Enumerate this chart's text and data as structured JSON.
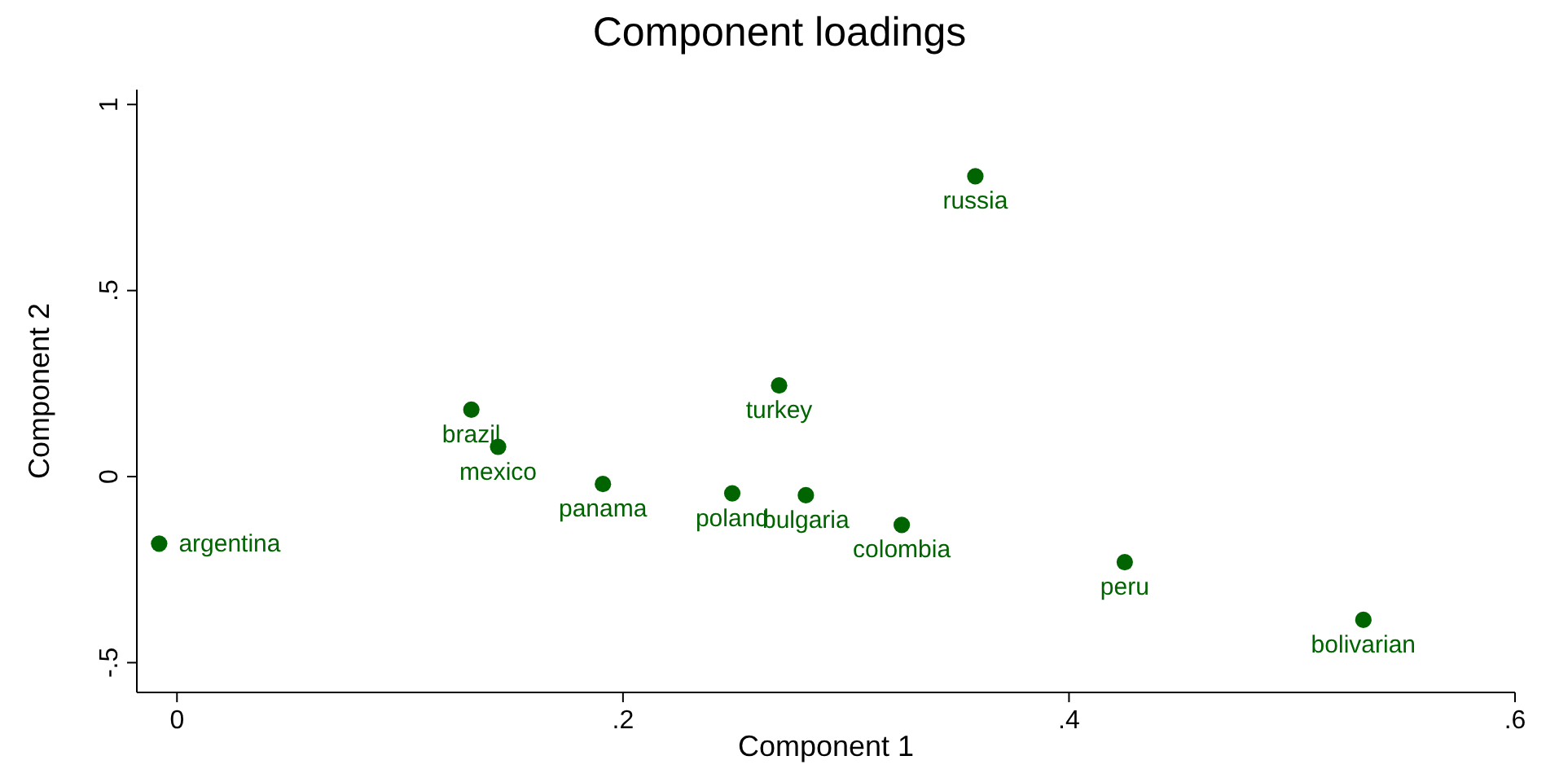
{
  "chart_data": {
    "type": "scatter",
    "title": "Component loadings",
    "xlabel": "Component 1",
    "ylabel": "Component 2",
    "x": [
      -0.008,
      0.132,
      0.144,
      0.191,
      0.249,
      0.282,
      0.27,
      0.325,
      0.358,
      0.425,
      0.532
    ],
    "values": [
      -0.18,
      0.18,
      0.08,
      -0.02,
      -0.045,
      -0.05,
      0.245,
      -0.13,
      0.807,
      -0.23,
      -0.385
    ],
    "value_labels": [
      "argentina",
      "brazil",
      "mexico",
      "panama",
      "poland",
      "bulgaria",
      "turkey",
      "colombia",
      "russia",
      "peru",
      "bolivarian"
    ],
    "color": "#006400",
    "marker": "circle",
    "xlim": [
      -0.018,
      0.6
    ],
    "ylim": [
      -0.58,
      1.04
    ],
    "xticks": [
      0,
      {
        "value": 0.2,
        "label": ".2"
      },
      {
        "value": 0.4,
        "label": ".4"
      },
      {
        "value": 0.6,
        "label": ".6"
      }
    ],
    "yticks": [
      {
        "value": -0.5,
        "label": "-.5"
      },
      0,
      {
        "value": 0.5,
        "label": ".5"
      },
      1
    ]
  }
}
